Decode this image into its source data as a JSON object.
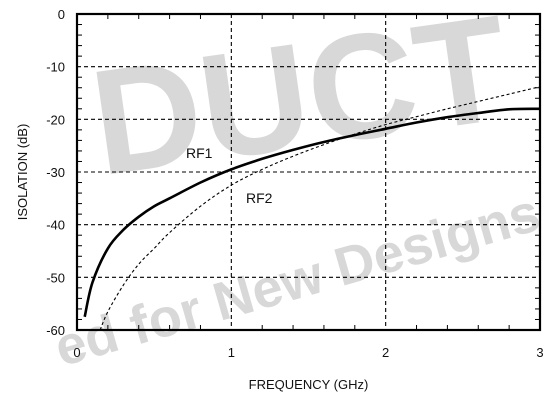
{
  "watermark": {
    "word1": "DUCT",
    "word2": "ed for New Designs"
  },
  "chart_data": {
    "type": "line",
    "title": "",
    "xlabel": "FREQUENCY (GHz)",
    "ylabel": "ISOLATION (dB)",
    "xlim": [
      0,
      3
    ],
    "ylim": [
      -60,
      0
    ],
    "x_ticks": [
      "0",
      "1",
      "2",
      "3"
    ],
    "y_ticks": [
      "0",
      "-10",
      "-20",
      "-30",
      "-40",
      "-50",
      "-60"
    ],
    "grid": true,
    "grid_style": "dashed",
    "series": [
      {
        "name": "RF1",
        "style": "solid",
        "x": [
          0.05,
          0.1,
          0.2,
          0.3,
          0.4,
          0.5,
          0.6,
          0.8,
          1.0,
          1.2,
          1.4,
          1.6,
          1.8,
          2.0,
          2.2,
          2.4,
          2.6,
          2.8,
          3.0
        ],
        "y": [
          -57.5,
          -51,
          -44.5,
          -41,
          -38.5,
          -36.5,
          -35,
          -32,
          -29.5,
          -27.5,
          -25.8,
          -24.3,
          -23,
          -21.8,
          -20.6,
          -19.6,
          -18.8,
          -18.1,
          -18
        ]
      },
      {
        "name": "RF2",
        "style": "dashed",
        "x": [
          0.15,
          0.2,
          0.3,
          0.4,
          0.5,
          0.6,
          0.8,
          1.0,
          1.2,
          1.4,
          1.6,
          1.8,
          2.0,
          2.2,
          2.4,
          2.6,
          2.8,
          3.0
        ],
        "y": [
          -60,
          -56.5,
          -51.5,
          -47.5,
          -44.5,
          -41.5,
          -36.5,
          -32.5,
          -29.5,
          -27,
          -24.8,
          -22.8,
          -21,
          -19.5,
          -18,
          -16.6,
          -15.2,
          -13.8
        ]
      }
    ]
  }
}
